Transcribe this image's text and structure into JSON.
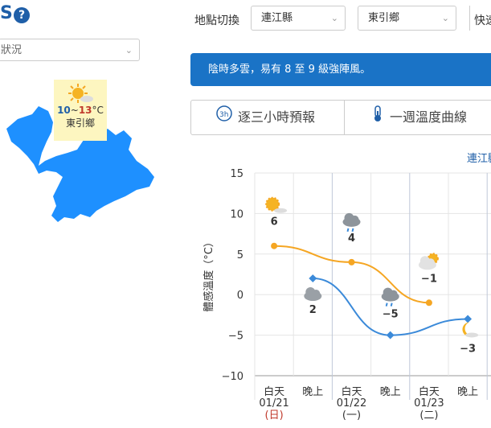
{
  "header": {
    "partial_title": "S",
    "help_label": "?"
  },
  "left_select": {
    "value": "狀況"
  },
  "map": {
    "badge": {
      "temp_low": "10",
      "separator": "~",
      "temp_high": "13",
      "unit": "°C",
      "name": "東引鄉"
    }
  },
  "location": {
    "label": "地點切換",
    "county_value": "連江縣",
    "township_value": "東引鄉",
    "quick_label": "快速"
  },
  "banner": {
    "text": "陰時多雲，易有 8 至 9 級強陣風。"
  },
  "tabs": [
    {
      "label": "逐三小時預報",
      "icon": "3h-clock-icon"
    },
    {
      "label": "一週溫度曲線",
      "icon": "thermometer-icon"
    }
  ],
  "chart_county_label": "連江縣",
  "colors": {
    "accent": "#1a73c6",
    "day_line": "#f5a623",
    "night_line": "#3b8ad9",
    "sunday": "#c0392b"
  },
  "chart_data": {
    "type": "line",
    "ylabel": "體感溫度（°C）",
    "ylim": [
      -10,
      15
    ],
    "yticks": [
      15,
      10,
      5,
      0,
      -5,
      -10
    ],
    "slots": [
      {
        "period": "白天",
        "date": "01/21",
        "weekday": "(日)",
        "weekday_color": "#c0392b"
      },
      {
        "period": "晚上",
        "date": "",
        "weekday": ""
      },
      {
        "period": "白天",
        "date": "01/22",
        "weekday": "(一)"
      },
      {
        "period": "晚上",
        "date": "",
        "weekday": ""
      },
      {
        "period": "白天",
        "date": "01/23",
        "weekday": "(二)"
      },
      {
        "period": "晚上",
        "date": "",
        "weekday": ""
      }
    ],
    "series": [
      {
        "key": "day",
        "color": "#f5a623",
        "points": [
          {
            "slot": 0,
            "value": 6,
            "label": "6",
            "icon": "sunny-cloud-icon"
          },
          {
            "slot": 2,
            "value": 4,
            "label": "4",
            "icon": "rain-cloud-icon"
          },
          {
            "slot": 4,
            "value": -1,
            "label": "−1",
            "icon": "cloud-sun-icon"
          }
        ]
      },
      {
        "key": "night",
        "color": "#3b8ad9",
        "points": [
          {
            "slot": 1,
            "value": 2,
            "label": "2",
            "icon": "cloud-icon"
          },
          {
            "slot": 3,
            "value": -5,
            "label": "−5",
            "icon": "rain-cloud-icon"
          },
          {
            "slot": 5,
            "value": -3,
            "label": "−3",
            "icon": "moon-cloud-icon"
          }
        ]
      }
    ]
  }
}
